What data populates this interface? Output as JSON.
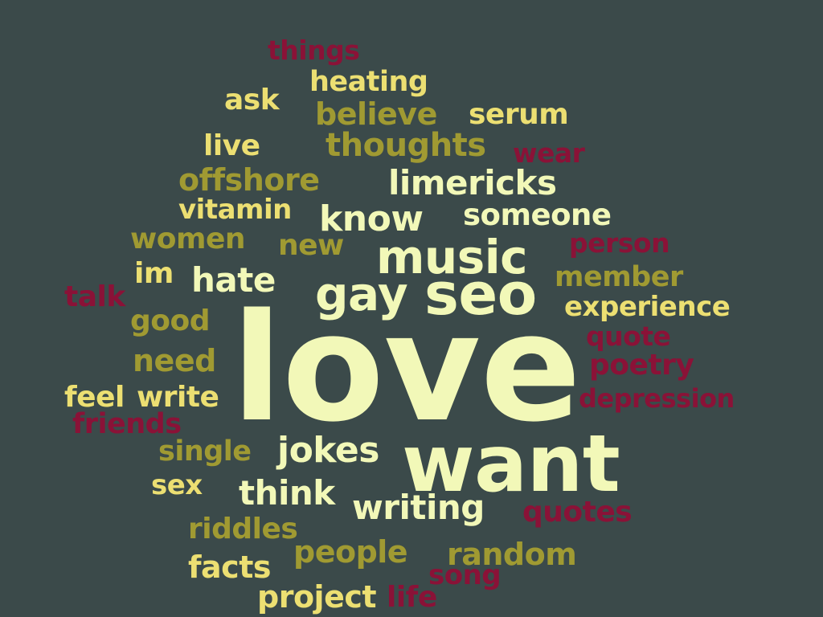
{
  "colors": {
    "background": "#3b4a4a",
    "cream": "#f2f8b8",
    "yellow": "#ecdf72",
    "olive": "#a09a32",
    "crimson": "#8a1237"
  },
  "words": [
    {
      "text": "things",
      "color": "crimson"
    },
    {
      "text": "heating",
      "color": "yellow"
    },
    {
      "text": "ask",
      "color": "yellow"
    },
    {
      "text": "believe",
      "color": "olive"
    },
    {
      "text": "serum",
      "color": "yellow"
    },
    {
      "text": "live",
      "color": "yellow"
    },
    {
      "text": "thoughts",
      "color": "olive"
    },
    {
      "text": "wear",
      "color": "crimson"
    },
    {
      "text": "offshore",
      "color": "olive"
    },
    {
      "text": "limericks",
      "color": "cream"
    },
    {
      "text": "vitamin",
      "color": "yellow"
    },
    {
      "text": "know",
      "color": "cream"
    },
    {
      "text": "someone",
      "color": "cream"
    },
    {
      "text": "women",
      "color": "olive"
    },
    {
      "text": "new",
      "color": "olive"
    },
    {
      "text": "music",
      "color": "cream"
    },
    {
      "text": "person",
      "color": "crimson"
    },
    {
      "text": "im",
      "color": "yellow"
    },
    {
      "text": "hate",
      "color": "cream"
    },
    {
      "text": "gay",
      "color": "cream"
    },
    {
      "text": "seo",
      "color": "cream"
    },
    {
      "text": "member",
      "color": "olive"
    },
    {
      "text": "talk",
      "color": "crimson"
    },
    {
      "text": "experience",
      "color": "yellow"
    },
    {
      "text": "good",
      "color": "olive"
    },
    {
      "text": "quote",
      "color": "crimson"
    },
    {
      "text": "love",
      "color": "cream"
    },
    {
      "text": "need",
      "color": "olive"
    },
    {
      "text": "poetry",
      "color": "crimson"
    },
    {
      "text": "feel",
      "color": "yellow"
    },
    {
      "text": "write",
      "color": "yellow"
    },
    {
      "text": "depression",
      "color": "crimson"
    },
    {
      "text": "friends",
      "color": "crimson"
    },
    {
      "text": "single",
      "color": "olive"
    },
    {
      "text": "jokes",
      "color": "cream"
    },
    {
      "text": "want",
      "color": "cream"
    },
    {
      "text": "sex",
      "color": "yellow"
    },
    {
      "text": "think",
      "color": "cream"
    },
    {
      "text": "writing",
      "color": "cream"
    },
    {
      "text": "quotes",
      "color": "crimson"
    },
    {
      "text": "riddles",
      "color": "olive"
    },
    {
      "text": "people",
      "color": "olive"
    },
    {
      "text": "random",
      "color": "olive"
    },
    {
      "text": "facts",
      "color": "yellow"
    },
    {
      "text": "song",
      "color": "crimson"
    },
    {
      "text": "project",
      "color": "yellow"
    },
    {
      "text": "life",
      "color": "crimson"
    }
  ]
}
